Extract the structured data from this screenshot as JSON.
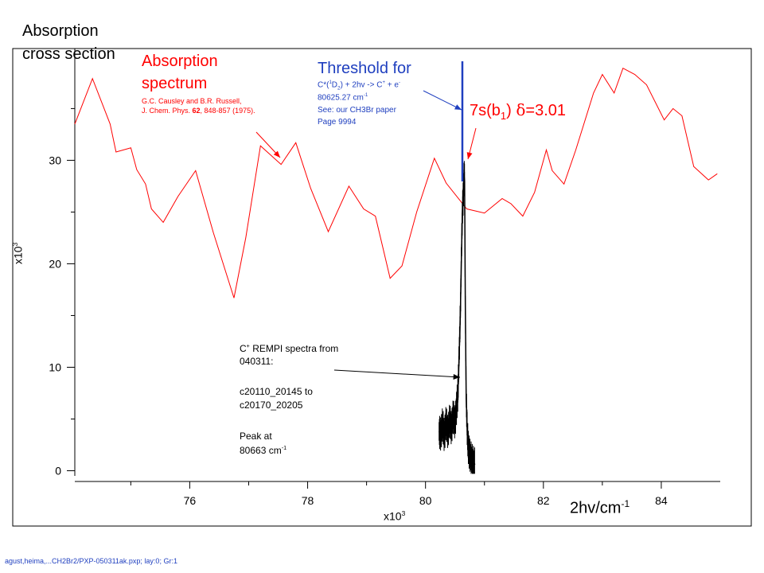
{
  "colors": {
    "absorption": "#ff0000",
    "threshold": "#1f3fbf",
    "rempi": "#000000",
    "frame": "#000000",
    "background": "#ffffff"
  },
  "labels": {
    "y_title_line1": "Absorption",
    "y_title_line2": "cross section",
    "y_multiplier_base": "x10",
    "y_multiplier_exp": "3",
    "x_multiplier_base": "x10",
    "x_multiplier_exp": "3",
    "x_axis_title_base": "2hv/cm",
    "x_axis_title_exp": "-1",
    "absorption_title_1": "Absorption",
    "absorption_title_2": "spectrum",
    "absorption_ref_1": "G.C. Causley and B.R. Russell,",
    "absorption_ref_2_pre": "J. Chem. Phys. ",
    "absorption_ref_2_vol": "62",
    "absorption_ref_2_post": ", 848-857 (1975).",
    "threshold_title": "Threshold for",
    "threshold_l1_a": "C*(",
    "threshold_l1_sup1": "1",
    "threshold_l1_b": "D",
    "threshold_l1_sub": "2",
    "threshold_l1_c": ") + 2hv -> C",
    "threshold_l1_sup2": "+",
    "threshold_l1_d": " + e",
    "threshold_l1_sup3": "-",
    "threshold_l2_base": "80625.27  cm",
    "threshold_l2_exp": "-1",
    "threshold_l3": "See: our CH3Br paper",
    "threshold_l4": "Page 9994",
    "state_a": "7s(b",
    "state_sub": "1",
    "state_b": ") ",
    "state_delta": "δ",
    "state_c": "=3.01",
    "rempi_l1_pre": "C",
    "rempi_l1_sup": "+",
    "rempi_l1_post": " REMPI spectra from",
    "rempi_l2": "040311:",
    "rempi_l3": "c20110_20145 to",
    "rempi_l4": "c20170_20205",
    "rempi_l5": "Peak at",
    "rempi_l6_base": "80663 cm",
    "rempi_l6_exp": "-1",
    "footer": "agust,heima,...CH2Br2/PXP-050311ak.pxp; lay:0; Gr:1"
  },
  "chart_data": {
    "type": "line",
    "x_unit_multiplier": 1000,
    "y_unit_multiplier": 1000,
    "xlim": [
      74.05,
      85.0
    ],
    "ylim": [
      -0.5,
      40.8
    ],
    "x_ticks": [
      76,
      78,
      80,
      82,
      84
    ],
    "x_minor_ticks": [
      75,
      77,
      79,
      81,
      83
    ],
    "y_ticks": [
      0,
      10,
      20,
      30
    ],
    "grid": false,
    "threshold_x": 80.625,
    "series": [
      {
        "kind": "absorption",
        "x": [
          74.05,
          74.35,
          74.65,
          74.75,
          75.0,
          75.1,
          75.25,
          75.35,
          75.55,
          75.8,
          76.1,
          76.4,
          76.75,
          76.95,
          77.2,
          77.55,
          77.8,
          78.05,
          78.35,
          78.7,
          78.95,
          79.15,
          79.3,
          79.4,
          79.6,
          79.85,
          80.15,
          80.35,
          80.7,
          81.0,
          81.3,
          81.45,
          81.65,
          81.85,
          82.05,
          82.15,
          82.35,
          82.55,
          82.85,
          83.0,
          83.2,
          83.35,
          83.55,
          83.75,
          84.05,
          84.2,
          84.35,
          84.55,
          84.8,
          84.95
        ],
        "y": [
          33.5,
          37.9,
          33.5,
          30.8,
          31.2,
          29.1,
          27.7,
          25.3,
          24.0,
          26.5,
          29.0,
          23.0,
          16.7,
          22.5,
          31.4,
          29.6,
          31.7,
          27.3,
          23.1,
          27.5,
          25.3,
          24.6,
          21.0,
          18.6,
          19.8,
          25.0,
          30.2,
          27.8,
          25.3,
          24.9,
          26.3,
          25.8,
          24.6,
          26.9,
          31.0,
          29.0,
          27.7,
          31.0,
          36.5,
          38.3,
          36.5,
          38.9,
          38.3,
          37.3,
          33.9,
          35.0,
          34.3,
          29.4,
          28.1,
          28.7
        ]
      },
      {
        "kind": "rempi",
        "peak_x": 80.663,
        "x": [
          80.23,
          80.26,
          80.29,
          80.32,
          80.35,
          80.38,
          80.41,
          80.44,
          80.47,
          80.5,
          80.53,
          80.55,
          80.57,
          80.59,
          80.61,
          80.625,
          80.64,
          80.655,
          80.663,
          80.675,
          80.69,
          80.71,
          80.73,
          80.76,
          80.8,
          80.84
        ],
        "y": [
          3.8,
          3.5,
          4.6,
          3.3,
          4.8,
          3.6,
          5.0,
          4.0,
          5.4,
          4.6,
          6.3,
          7.5,
          11.0,
          15.0,
          21.0,
          25.0,
          26.5,
          28.5,
          28.0,
          16.0,
          7.0,
          3.5,
          2.0,
          1.4,
          0.9,
          0.6
        ]
      }
    ]
  }
}
